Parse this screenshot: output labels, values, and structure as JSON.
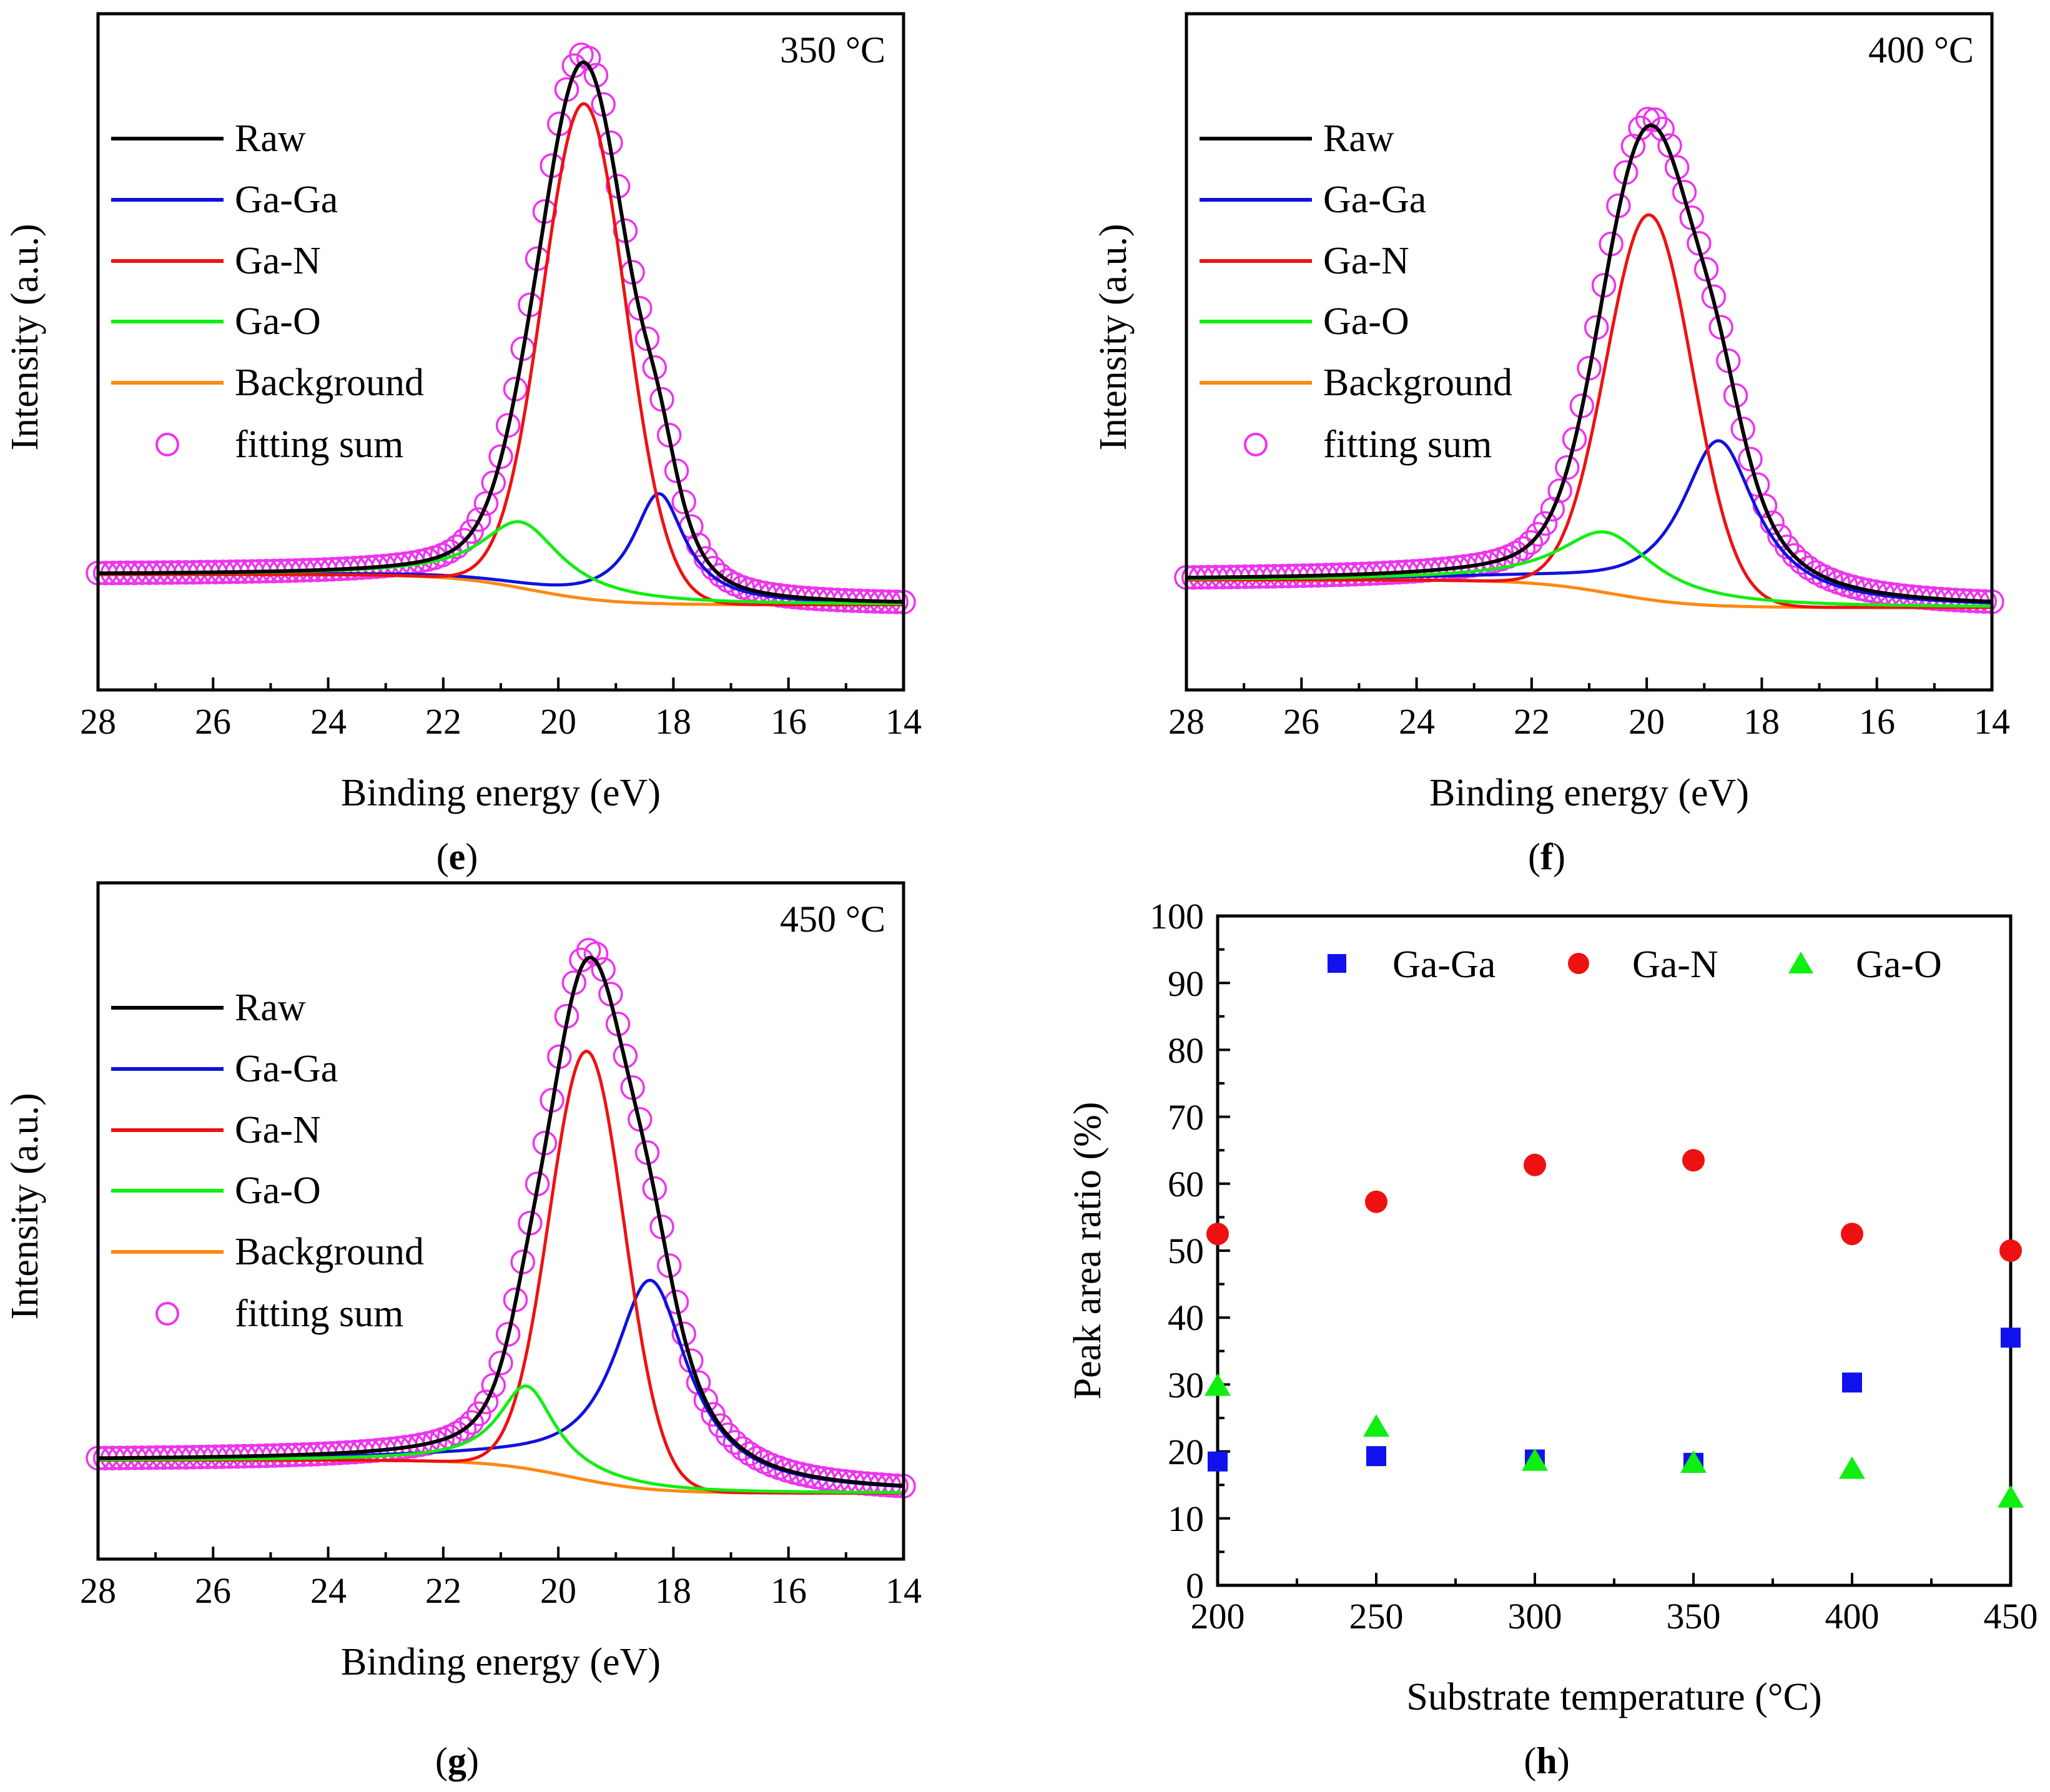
{
  "figure": {
    "panels": {
      "e": {
        "caption_open": "(",
        "caption_letter": "e",
        "caption_close": ")"
      },
      "f": {
        "caption_open": "(",
        "caption_letter": "f",
        "caption_close": ")"
      },
      "g": {
        "caption_open": "(",
        "caption_letter": "g",
        "caption_close": ")"
      },
      "h": {
        "caption_open": "(",
        "caption_letter": "h",
        "caption_close": ")"
      }
    }
  },
  "colors": {
    "raw": "#000000",
    "ga_ga": "#1111dd",
    "ga_n": "#ee1111",
    "ga_o": "#11ee11",
    "background": "#ff8811",
    "fitting_sum": "#ee33ee",
    "scatter_ga_ga": "#1111ee",
    "scatter_ga_n": "#ee1111",
    "scatter_ga_o": "#11ee11"
  },
  "chart_data": [
    {
      "id": "e",
      "type": "line",
      "annotation": "350 °C",
      "xlabel": "Binding energy (eV)",
      "ylabel": "Intensity (a.u.)",
      "xlim": [
        28,
        14
      ],
      "xticks": [
        "28",
        "26",
        "24",
        "22",
        "20",
        "18",
        "16",
        "14"
      ],
      "yticks_shown": false,
      "legend": [
        "Raw",
        "Ga-Ga",
        "Ga-N",
        "Ga-O",
        "Background",
        "fitting sum"
      ],
      "background_model": {
        "high_level": 0.03,
        "low_level": -0.025,
        "center": 20.5,
        "width": 0.7
      },
      "components": [
        {
          "name": "Ga-Ga",
          "center": 18.25,
          "height": 0.2,
          "width": 0.55,
          "shape": "lorentzian"
        },
        {
          "name": "Ga-N",
          "center": 19.55,
          "height": 0.9,
          "width": 0.72,
          "shape": "gaussian"
        },
        {
          "name": "Ga-O",
          "center": 20.65,
          "height": 0.12,
          "width": 0.85,
          "shape": "lorentzian"
        }
      ],
      "ylim": [
        -0.18,
        1.05
      ]
    },
    {
      "id": "f",
      "type": "line",
      "annotation": "400 °C",
      "xlabel": "Binding energy (eV)",
      "ylabel": "Intensity (a.u.)",
      "xlim": [
        28,
        14
      ],
      "xticks": [
        "28",
        "26",
        "24",
        "22",
        "20",
        "18",
        "16",
        "14"
      ],
      "yticks_shown": false,
      "legend": [
        "Raw",
        "Ga-Ga",
        "Ga-N",
        "Ga-O",
        "Background",
        "fitting sum"
      ],
      "background_model": {
        "high_level": 0.02,
        "low_level": -0.03,
        "center": 20.6,
        "width": 0.7
      },
      "components": [
        {
          "name": "Ga-Ga",
          "center": 18.75,
          "height": 0.3,
          "width": 0.8,
          "shape": "lorentzian"
        },
        {
          "name": "Ga-N",
          "center": 19.95,
          "height": 0.7,
          "width": 0.75,
          "shape": "gaussian"
        },
        {
          "name": "Ga-O",
          "center": 20.7,
          "height": 0.11,
          "width": 1.0,
          "shape": "lorentzian"
        }
      ],
      "ylim": [
        -0.18,
        1.05
      ]
    },
    {
      "id": "g",
      "type": "line",
      "annotation": "450 °C",
      "xlabel": "Binding energy (eV)",
      "ylabel": "Intensity (a.u.)",
      "xlim": [
        28,
        14
      ],
      "xticks": [
        "28",
        "26",
        "24",
        "22",
        "20",
        "18",
        "16",
        "14"
      ],
      "yticks_shown": false,
      "legend": [
        "Raw",
        "Ga-Ga",
        "Ga-N",
        "Ga-O",
        "Background",
        "fitting sum"
      ],
      "background_model": {
        "high_level": 0.0,
        "low_level": -0.06,
        "center": 19.8,
        "width": 0.7
      },
      "components": [
        {
          "name": "Ga-Ga",
          "center": 18.4,
          "height": 0.38,
          "width": 0.8,
          "shape": "lorentzian"
        },
        {
          "name": "Ga-N",
          "center": 19.5,
          "height": 0.78,
          "width": 0.65,
          "shape": "gaussian"
        },
        {
          "name": "Ga-O",
          "center": 20.55,
          "height": 0.15,
          "width": 0.6,
          "shape": "lorentzian"
        }
      ],
      "ylim": [
        -0.18,
        1.05
      ]
    },
    {
      "id": "h",
      "type": "scatter",
      "xlabel": "Substrate temperature (°C)",
      "ylabel": "Peak area ratio (%)",
      "xlim": [
        200,
        450
      ],
      "ylim": [
        0,
        100
      ],
      "xticks": [
        "200",
        "250",
        "300",
        "350",
        "400",
        "450"
      ],
      "yticks": [
        "0",
        "10",
        "20",
        "30",
        "40",
        "50",
        "60",
        "70",
        "80",
        "90",
        "100"
      ],
      "x": [
        200,
        250,
        300,
        350,
        400,
        450
      ],
      "series": [
        {
          "name": "Ga-Ga",
          "marker": "square",
          "values": [
            18.5,
            19.3,
            18.8,
            18.3,
            30.3,
            37.0
          ]
        },
        {
          "name": "Ga-N",
          "marker": "circle",
          "values": [
            52.5,
            57.3,
            62.8,
            63.5,
            52.5,
            50.0
          ]
        },
        {
          "name": "Ga-O",
          "marker": "triangle",
          "values": [
            29.7,
            23.6,
            18.5,
            18.2,
            17.3,
            13.0
          ]
        }
      ]
    }
  ]
}
